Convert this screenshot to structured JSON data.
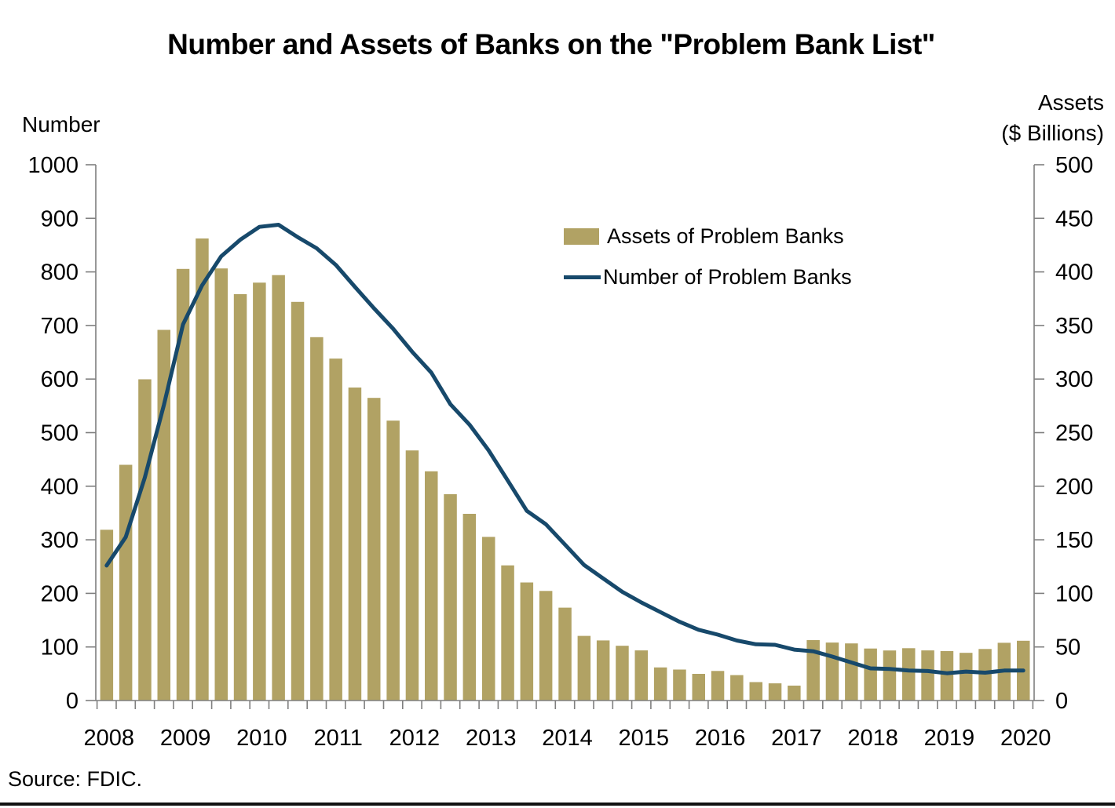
{
  "title": "Number and Assets of Banks on the \"Problem Bank List\"",
  "source": "Source: FDIC.",
  "left_axis": {
    "title": "Number"
  },
  "right_axis": {
    "title_line1": "Assets",
    "title_line2": "($ Billions)"
  },
  "legend": {
    "bar_label": "Assets of Problem Banks",
    "line_label": "Number of Problem Banks"
  },
  "colors": {
    "bar": "#b1a264",
    "line": "#17496b",
    "axis": "#7f7f7f",
    "text": "#000000"
  },
  "chart_data": {
    "type": "bar+line",
    "title": "Number and Assets of Banks on the \"Problem Bank List\"",
    "x_year_labels": [
      "2008",
      "2009",
      "2010",
      "2011",
      "2012",
      "2013",
      "2014",
      "2015",
      "2016",
      "2017",
      "2018",
      "2019",
      "2020"
    ],
    "quarters": [
      "2008 Q4",
      "2009 Q1",
      "2009 Q2",
      "2009 Q3",
      "2009 Q4",
      "2010 Q1",
      "2010 Q2",
      "2010 Q3",
      "2010 Q4",
      "2011 Q1",
      "2011 Q2",
      "2011 Q3",
      "2011 Q4",
      "2012 Q1",
      "2012 Q2",
      "2012 Q3",
      "2012 Q4",
      "2013 Q1",
      "2013 Q2",
      "2013 Q3",
      "2013 Q4",
      "2014 Q1",
      "2014 Q2",
      "2014 Q3",
      "2014 Q4",
      "2015 Q1",
      "2015 Q2",
      "2015 Q3",
      "2015 Q4",
      "2016 Q1",
      "2016 Q2",
      "2016 Q3",
      "2016 Q4",
      "2017 Q1",
      "2017 Q2",
      "2017 Q3",
      "2017 Q4",
      "2018 Q1",
      "2018 Q2",
      "2018 Q3",
      "2018 Q4",
      "2019 Q1",
      "2019 Q2",
      "2019 Q3",
      "2019 Q4",
      "2020 Q1",
      "2020 Q2",
      "2020 Q3",
      "2020 Q4"
    ],
    "series": [
      {
        "name": "Assets of Problem Banks",
        "type": "bar",
        "axis": "right",
        "unit": "$ billions",
        "values": [
          159.4,
          220.0,
          299.8,
          345.9,
          402.8,
          431.2,
          403.2,
          379.2,
          390.0,
          397.0,
          372.0,
          339.1,
          319.1,
          292.1,
          282.4,
          261.2,
          233.4,
          213.9,
          192.5,
          174.2,
          152.7,
          126.1,
          110.2,
          102.3,
          86.7,
          60.3,
          56.1,
          51.1,
          46.8,
          30.9,
          28.9,
          24.9,
          27.6,
          23.7,
          17.2,
          16.0,
          13.9,
          56.4,
          54.1,
          53.3,
          48.5,
          46.7,
          48.8,
          46.8,
          46.2,
          44.5,
          48.1,
          53.9,
          55.8
        ]
      },
      {
        "name": "Number of Problem Banks",
        "type": "line",
        "axis": "left",
        "unit": "banks",
        "values": [
          252,
          305,
          416,
          552,
          702,
          775,
          829,
          860,
          884,
          888,
          865,
          844,
          813,
          772,
          732,
          694,
          651,
          612,
          553,
          515,
          467,
          411,
          354,
          329,
          291,
          253,
          228,
          203,
          183,
          165,
          147,
          132,
          123,
          112,
          105,
          104,
          95,
          92,
          82,
          71,
          60,
          59,
          56,
          55,
          51,
          54,
          52,
          56,
          56
        ]
      }
    ],
    "left_ylabel": "Number",
    "right_ylabel": "Assets ($ Billions)",
    "left_ylim": [
      0,
      1000
    ],
    "right_ylim": [
      0,
      500
    ],
    "left_ticks": [
      0,
      100,
      200,
      300,
      400,
      500,
      600,
      700,
      800,
      900,
      1000
    ],
    "right_ticks": [
      0,
      50,
      100,
      150,
      200,
      250,
      300,
      350,
      400,
      450,
      500
    ],
    "grid": false,
    "legend_position": "upper middle-right"
  }
}
